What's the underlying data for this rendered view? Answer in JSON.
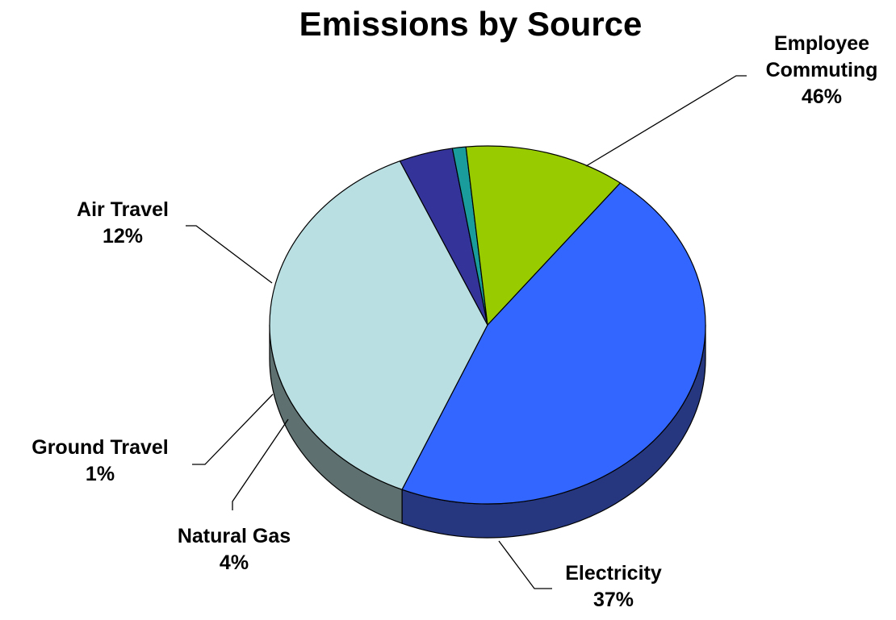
{
  "chart_data": {
    "type": "pie",
    "title": "Emissions by Source",
    "three_d": true,
    "slices": [
      {
        "label": "Employee Commuting",
        "label_lines": [
          "Employee",
          "Commuting"
        ],
        "value": 46,
        "percent_text": "46%",
        "color": "#3366FF",
        "side_color": "#26377F"
      },
      {
        "label": "Electricity",
        "label_lines": [
          "Electricity"
        ],
        "value": 37,
        "percent_text": "37%",
        "color": "#BADFE3",
        "side_color": "#5E7070"
      },
      {
        "label": "Natural Gas",
        "label_lines": [
          "Natural Gas"
        ],
        "value": 4,
        "percent_text": "4%",
        "color": "#333399",
        "side_color": "#22225F"
      },
      {
        "label": "Ground Travel",
        "label_lines": [
          "Ground Travel"
        ],
        "value": 1,
        "percent_text": "1%",
        "color": "#1A9C9C",
        "side_color": "#0F5C5C"
      },
      {
        "label": "Air Travel",
        "label_lines": [
          "Air Travel"
        ],
        "value": 12,
        "percent_text": "12%",
        "color": "#99CC00",
        "side_color": "#5C7A00"
      }
    ]
  }
}
